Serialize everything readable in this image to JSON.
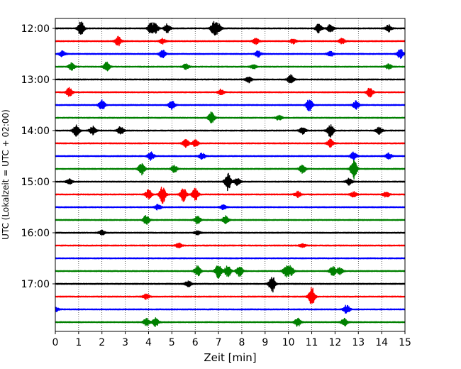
{
  "chart_data": {
    "type": "line",
    "title": "",
    "xlabel": "Zeit  [min]",
    "ylabel": "UTC (Lokalzeit = UTC + 02:00)",
    "xlim": [
      0,
      15
    ],
    "x_ticks": [
      "0",
      "1",
      "2",
      "3",
      "4",
      "5",
      "6",
      "7",
      "8",
      "9",
      "10",
      "11",
      "12",
      "13",
      "14",
      "15"
    ],
    "y_ticks": [
      "12:00",
      "13:00",
      "14:00",
      "15:00",
      "16:00",
      "17:00"
    ],
    "grid": "vertical dotted lines at each minute",
    "colors": [
      "#000000",
      "#ff0000",
      "#0000ff",
      "#008000"
    ],
    "traces": [
      {
        "start": "12:00",
        "color": "#000000",
        "events": [
          [
            1.1,
            0.8
          ],
          [
            4.1,
            0.6
          ],
          [
            4.3,
            0.5
          ],
          [
            4.8,
            0.55
          ],
          [
            6.8,
            0.75
          ],
          [
            7.0,
            0.5
          ],
          [
            11.3,
            0.5
          ],
          [
            11.8,
            0.45
          ],
          [
            14.3,
            0.4
          ]
        ]
      },
      {
        "start": "12:15",
        "color": "#ff0000",
        "events": [
          [
            2.7,
            0.55
          ],
          [
            4.6,
            0.3
          ],
          [
            8.6,
            0.4
          ],
          [
            10.2,
            0.3
          ],
          [
            12.3,
            0.3
          ]
        ]
      },
      {
        "start": "12:30",
        "color": "#0000ff",
        "events": [
          [
            0.3,
            0.3
          ],
          [
            4.6,
            0.45
          ],
          [
            8.7,
            0.35
          ],
          [
            11.8,
            0.3
          ],
          [
            14.8,
            0.55
          ]
        ]
      },
      {
        "start": "12:45",
        "color": "#008000",
        "events": [
          [
            0.7,
            0.4
          ],
          [
            2.2,
            0.55
          ],
          [
            5.6,
            0.3
          ],
          [
            8.5,
            0.25
          ],
          [
            14.3,
            0.3
          ]
        ]
      },
      {
        "start": "13:00",
        "color": "#000000",
        "events": [
          [
            8.3,
            0.35
          ],
          [
            10.1,
            0.5
          ]
        ]
      },
      {
        "start": "13:15",
        "color": "#ff0000",
        "events": [
          [
            0.6,
            0.55
          ],
          [
            7.1,
            0.35
          ],
          [
            13.5,
            0.55
          ]
        ]
      },
      {
        "start": "13:30",
        "color": "#0000ff",
        "events": [
          [
            2.0,
            0.6
          ],
          [
            5.0,
            0.5
          ],
          [
            10.9,
            0.75
          ],
          [
            12.9,
            0.45
          ]
        ]
      },
      {
        "start": "13:45",
        "color": "#008000",
        "events": [
          [
            6.7,
            0.65
          ],
          [
            9.6,
            0.3
          ]
        ]
      },
      {
        "start": "14:00",
        "color": "#000000",
        "events": [
          [
            0.9,
            0.7
          ],
          [
            1.6,
            0.5
          ],
          [
            2.8,
            0.45
          ],
          [
            10.6,
            0.4
          ],
          [
            11.8,
            0.75
          ],
          [
            13.9,
            0.4
          ]
        ]
      },
      {
        "start": "14:15",
        "color": "#ff0000",
        "events": [
          [
            5.6,
            0.45
          ],
          [
            6.0,
            0.4
          ],
          [
            11.8,
            0.45
          ]
        ]
      },
      {
        "start": "14:30",
        "color": "#0000ff",
        "events": [
          [
            4.1,
            0.45
          ],
          [
            6.3,
            0.35
          ],
          [
            12.8,
            0.5
          ],
          [
            14.3,
            0.35
          ]
        ]
      },
      {
        "start": "14:45",
        "color": "#008000",
        "events": [
          [
            3.7,
            0.7
          ],
          [
            5.1,
            0.4
          ],
          [
            10.6,
            0.5
          ],
          [
            12.8,
            1.2
          ]
        ]
      },
      {
        "start": "15:00",
        "color": "#000000",
        "events": [
          [
            0.6,
            0.3
          ],
          [
            7.4,
            1.0
          ],
          [
            7.8,
            0.4
          ],
          [
            12.6,
            0.35
          ]
        ]
      },
      {
        "start": "15:15",
        "color": "#ff0000",
        "events": [
          [
            4.0,
            0.55
          ],
          [
            4.6,
            1.0
          ],
          [
            5.5,
            0.8
          ],
          [
            6.0,
            0.75
          ],
          [
            10.4,
            0.35
          ],
          [
            12.8,
            0.3
          ],
          [
            14.2,
            0.35
          ]
        ]
      },
      {
        "start": "15:30",
        "color": "#0000ff",
        "events": [
          [
            4.4,
            0.3
          ],
          [
            7.2,
            0.25
          ]
        ]
      },
      {
        "start": "15:45",
        "color": "#008000",
        "events": [
          [
            3.9,
            0.55
          ],
          [
            6.1,
            0.45
          ],
          [
            7.3,
            0.45
          ]
        ]
      },
      {
        "start": "16:00",
        "color": "#000000",
        "events": [
          [
            2.0,
            0.25
          ],
          [
            6.1,
            0.2
          ]
        ]
      },
      {
        "start": "16:15",
        "color": "#ff0000",
        "events": [
          [
            5.3,
            0.25
          ],
          [
            10.6,
            0.2
          ]
        ]
      },
      {
        "start": "16:30",
        "color": "#0000ff",
        "events": []
      },
      {
        "start": "16:45",
        "color": "#008000",
        "events": [
          [
            6.1,
            0.65
          ],
          [
            7.0,
            0.85
          ],
          [
            7.4,
            0.7
          ],
          [
            7.9,
            0.6
          ],
          [
            9.9,
            0.6
          ],
          [
            10.1,
            0.55
          ],
          [
            11.9,
            0.55
          ],
          [
            12.2,
            0.4
          ]
        ]
      },
      {
        "start": "17:00",
        "color": "#000000",
        "events": [
          [
            5.7,
            0.35
          ],
          [
            9.3,
            1.0
          ]
        ]
      },
      {
        "start": "17:15",
        "color": "#ff0000",
        "events": [
          [
            3.9,
            0.3
          ],
          [
            11.0,
            1.1
          ]
        ]
      },
      {
        "start": "17:30",
        "color": "#0000ff",
        "events": [
          [
            0.0,
            0.3
          ],
          [
            12.5,
            0.5
          ]
        ]
      },
      {
        "start": "17:45",
        "color": "#008000",
        "events": [
          [
            3.9,
            0.45
          ],
          [
            4.3,
            0.5
          ],
          [
            10.4,
            0.5
          ],
          [
            12.4,
            0.45
          ]
        ]
      }
    ]
  }
}
